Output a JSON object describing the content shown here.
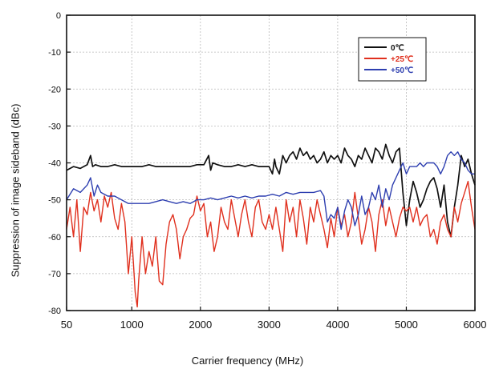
{
  "chart_data": {
    "type": "line",
    "title": "",
    "xlabel": "Carrier frequency (MHz)",
    "ylabel": "Suppression of image sideband (dBc)",
    "xlim": [
      50,
      6000
    ],
    "ylim": [
      -80,
      0
    ],
    "x_ticks": [
      50,
      1000,
      2000,
      3000,
      4000,
      5000,
      6000
    ],
    "x_tick_labels": [
      "50",
      "1000",
      "2000",
      "3000",
      "4000",
      "5000",
      "6000"
    ],
    "y_ticks": [
      0,
      -10,
      -20,
      -30,
      -40,
      -50,
      -60,
      -70,
      -80
    ],
    "y_tick_labels": [
      "0",
      "-10",
      "-20",
      "-30",
      "-40",
      "-50",
      "-60",
      "-70",
      "-80"
    ],
    "grid": true,
    "legend_position": "top-right",
    "series": [
      {
        "name": "0℃",
        "color": "#111111",
        "x": [
          50,
          150,
          250,
          350,
          400,
          430,
          470,
          550,
          650,
          750,
          850,
          950,
          1050,
          1150,
          1250,
          1350,
          1450,
          1550,
          1650,
          1750,
          1850,
          1950,
          2050,
          2120,
          2150,
          2180,
          2250,
          2350,
          2450,
          2550,
          2650,
          2750,
          2850,
          2950,
          3000,
          3050,
          3080,
          3100,
          3150,
          3200,
          3250,
          3300,
          3350,
          3400,
          3450,
          3500,
          3550,
          3600,
          3650,
          3700,
          3750,
          3800,
          3850,
          3900,
          3950,
          4000,
          4050,
          4100,
          4150,
          4200,
          4250,
          4300,
          4350,
          4400,
          4450,
          4500,
          4550,
          4600,
          4650,
          4700,
          4750,
          4800,
          4850,
          4900,
          4950,
          5000,
          5050,
          5100,
          5150,
          5200,
          5250,
          5300,
          5350,
          5400,
          5450,
          5500,
          5550,
          5600,
          5650,
          5700,
          5750,
          5800,
          5850,
          5900,
          5950,
          6000
        ],
        "values": [
          -42,
          -41,
          -41.5,
          -40.5,
          -38,
          -41,
          -40.5,
          -41,
          -41,
          -40.5,
          -41,
          -41,
          -41,
          -41,
          -40.5,
          -41,
          -41,
          -41,
          -41,
          -41,
          -41,
          -40.5,
          -40.5,
          -38,
          -42,
          -40,
          -40.5,
          -41,
          -41,
          -40.5,
          -41,
          -40.5,
          -41,
          -41,
          -41,
          -43,
          -39,
          -41,
          -43,
          -38,
          -40,
          -38,
          -37,
          -39,
          -36,
          -38,
          -37,
          -39,
          -38,
          -40,
          -39,
          -37,
          -40,
          -38,
          -39,
          -38,
          -40,
          -36,
          -38,
          -39,
          -41,
          -38,
          -39,
          -36,
          -38,
          -40,
          -36,
          -37,
          -39,
          -35,
          -38,
          -40,
          -37,
          -36,
          -48,
          -57,
          -50,
          -45,
          -48,
          -52,
          -50,
          -47,
          -45,
          -44,
          -47,
          -52,
          -46,
          -56,
          -60,
          -52,
          -46,
          -38,
          -41,
          -39,
          -43,
          -46
        ]
      },
      {
        "name": "+25℃",
        "color": "#e0301e",
        "x": [
          50,
          100,
          150,
          200,
          250,
          300,
          350,
          400,
          450,
          500,
          550,
          600,
          650,
          700,
          750,
          800,
          850,
          900,
          950,
          1000,
          1050,
          1080,
          1100,
          1150,
          1200,
          1250,
          1300,
          1350,
          1400,
          1450,
          1500,
          1550,
          1600,
          1650,
          1700,
          1750,
          1800,
          1850,
          1900,
          1950,
          2000,
          2050,
          2100,
          2150,
          2200,
          2250,
          2300,
          2350,
          2400,
          2450,
          2500,
          2550,
          2600,
          2650,
          2700,
          2750,
          2800,
          2850,
          2900,
          2950,
          3000,
          3050,
          3100,
          3150,
          3200,
          3250,
          3300,
          3350,
          3400,
          3450,
          3500,
          3550,
          3600,
          3650,
          3700,
          3750,
          3800,
          3850,
          3900,
          3950,
          4000,
          4050,
          4100,
          4150,
          4200,
          4250,
          4300,
          4350,
          4400,
          4450,
          4500,
          4550,
          4600,
          4650,
          4700,
          4750,
          4800,
          4850,
          4900,
          4950,
          5000,
          5050,
          5100,
          5150,
          5200,
          5250,
          5300,
          5350,
          5400,
          5450,
          5500,
          5550,
          5600,
          5650,
          5700,
          5750,
          5800,
          5850,
          5900,
          5950,
          6000
        ],
        "values": [
          -58,
          -52,
          -60,
          -50,
          -64,
          -52,
          -54,
          -48,
          -53,
          -50,
          -56,
          -49,
          -52,
          -48,
          -55,
          -58,
          -51,
          -56,
          -70,
          -60,
          -75,
          -79,
          -72,
          -60,
          -70,
          -64,
          -68,
          -60,
          -72,
          -73,
          -62,
          -56,
          -54,
          -58,
          -66,
          -60,
          -58,
          -55,
          -54,
          -49,
          -53,
          -51,
          -60,
          -56,
          -64,
          -60,
          -52,
          -56,
          -58,
          -50,
          -55,
          -60,
          -54,
          -50,
          -56,
          -60,
          -52,
          -50,
          -56,
          -58,
          -54,
          -58,
          -52,
          -58,
          -64,
          -50,
          -56,
          -52,
          -60,
          -50,
          -55,
          -62,
          -52,
          -56,
          -50,
          -54,
          -58,
          -63,
          -55,
          -60,
          -52,
          -57,
          -54,
          -60,
          -56,
          -48,
          -55,
          -62,
          -58,
          -52,
          -56,
          -64,
          -54,
          -50,
          -57,
          -52,
          -56,
          -60,
          -55,
          -52,
          -53,
          -52,
          -56,
          -52,
          -57,
          -55,
          -54,
          -60,
          -58,
          -62,
          -56,
          -54,
          -58,
          -60,
          -52,
          -56,
          -51,
          -48,
          -45,
          -52,
          -58
        ]
      },
      {
        "name": "+50℃",
        "color": "#2e3fb0",
        "x": [
          50,
          150,
          250,
          350,
          400,
          450,
          500,
          550,
          650,
          750,
          850,
          950,
          1050,
          1150,
          1250,
          1350,
          1450,
          1550,
          1650,
          1750,
          1850,
          1950,
          2050,
          2150,
          2250,
          2350,
          2450,
          2550,
          2650,
          2750,
          2850,
          2950,
          3050,
          3150,
          3250,
          3350,
          3450,
          3550,
          3650,
          3750,
          3800,
          3850,
          3900,
          3950,
          4000,
          4050,
          4100,
          4150,
          4200,
          4250,
          4300,
          4350,
          4400,
          4450,
          4500,
          4550,
          4600,
          4650,
          4700,
          4750,
          4800,
          4850,
          4900,
          4950,
          5000,
          5050,
          5100,
          5150,
          5200,
          5250,
          5300,
          5350,
          5400,
          5450,
          5500,
          5550,
          5600,
          5650,
          5700,
          5750,
          5800,
          5850,
          5900,
          5950,
          6000
        ],
        "values": [
          -50,
          -47,
          -48,
          -46,
          -44,
          -49,
          -46,
          -48,
          -49,
          -49,
          -50,
          -51,
          -51,
          -51,
          -51,
          -50.5,
          -50,
          -50.5,
          -51,
          -50.5,
          -51,
          -50,
          -50,
          -49.5,
          -50,
          -49.5,
          -49,
          -49.5,
          -49,
          -49.5,
          -49,
          -49,
          -48.5,
          -49,
          -48,
          -48.5,
          -48,
          -48,
          -48,
          -47.5,
          -49,
          -56,
          -54,
          -55,
          -52,
          -58,
          -53,
          -50,
          -52,
          -57,
          -54,
          -49,
          -54,
          -52,
          -48,
          -50,
          -46,
          -52,
          -47,
          -50,
          -46,
          -44,
          -42,
          -40,
          -43,
          -41,
          -41,
          -41,
          -40,
          -41,
          -40,
          -40,
          -40,
          -41,
          -43,
          -41,
          -38,
          -37,
          -38,
          -37,
          -39,
          -40,
          -42,
          -43,
          -43
        ]
      }
    ]
  }
}
